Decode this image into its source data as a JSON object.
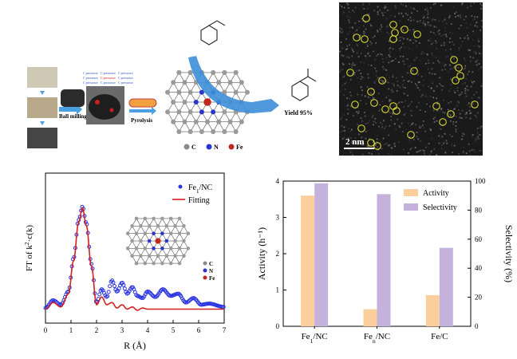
{
  "scheme": {
    "step_labels": [
      "Ball milling",
      "Pyrolysis"
    ],
    "precursor_word": "C precursor",
    "yield_label": "Yield 95%",
    "legend": [
      {
        "symbol": "C",
        "color": "#8a8a8a"
      },
      {
        "symbol": "N",
        "color": "#2a35c9"
      },
      {
        "symbol": "Fe",
        "color": "#c0281e"
      }
    ]
  },
  "micrograph": {
    "scale_label": "2 nm",
    "marker_color": "#e8e838"
  },
  "chart_data": [
    {
      "type": "line",
      "xlabel": "R (Å)",
      "ylabel": "FT of k²·c(k)",
      "xlim": [
        0,
        7
      ],
      "xticks": [
        0,
        1,
        2,
        3,
        4,
        5,
        6,
        7
      ],
      "series": [
        {
          "name": "Fe1/NC",
          "style": "scatter",
          "color": "#2a35e0",
          "x": [
            0.0,
            0.3,
            0.6,
            0.9,
            1.1,
            1.3,
            1.45,
            1.6,
            1.8,
            2.0,
            2.2,
            2.4,
            2.6,
            2.8,
            3.0,
            3.2,
            3.4,
            3.6,
            3.8,
            4.0,
            4.3,
            4.6,
            4.9,
            5.2,
            5.5,
            5.8,
            6.1,
            6.4,
            7.0
          ],
          "y": [
            0.05,
            0.12,
            0.08,
            0.2,
            0.5,
            0.85,
            0.97,
            0.82,
            0.45,
            0.1,
            0.22,
            0.15,
            0.3,
            0.2,
            0.28,
            0.18,
            0.24,
            0.16,
            0.14,
            0.2,
            0.15,
            0.22,
            0.16,
            0.18,
            0.1,
            0.14,
            0.08,
            0.09,
            0.06
          ]
        },
        {
          "name": "Fitting",
          "style": "line",
          "color": "#d42020",
          "x": [
            0.0,
            0.3,
            0.6,
            0.9,
            1.1,
            1.3,
            1.45,
            1.6,
            1.8,
            2.0,
            2.2,
            2.4,
            2.6,
            2.8,
            3.0,
            3.2,
            3.4,
            3.6,
            3.8,
            4.0,
            4.5,
            5.0,
            6.0,
            7.0
          ],
          "y": [
            0.04,
            0.1,
            0.06,
            0.18,
            0.48,
            0.83,
            0.96,
            0.8,
            0.43,
            0.08,
            0.15,
            0.08,
            0.1,
            0.05,
            0.08,
            0.04,
            0.06,
            0.03,
            0.05,
            0.04,
            0.04,
            0.04,
            0.04,
            0.04
          ]
        }
      ],
      "inset_legend": [
        {
          "symbol": "C",
          "color": "#8a8a8a"
        },
        {
          "symbol": "N",
          "color": "#2a35c9"
        },
        {
          "symbol": "Fe",
          "color": "#c0281e"
        }
      ]
    },
    {
      "type": "bar",
      "categories": [
        "Fe1/NC",
        "Fen/NC",
        "Fe/C"
      ],
      "series": [
        {
          "name": "Activity",
          "axis": "left",
          "color": "#fbcf9b",
          "values": [
            3.6,
            0.47,
            0.86
          ]
        },
        {
          "name": "Selectivity",
          "axis": "right",
          "color": "#c4b1dc",
          "values": [
            98.5,
            91,
            54
          ]
        }
      ],
      "ylabel_left": "Activity (h⁻¹)",
      "ylabel_right": "Selectivity (%)",
      "ylim_left": [
        0,
        4
      ],
      "ylim_right": [
        0,
        100
      ],
      "yticks_left": [
        0,
        1,
        2,
        3,
        4
      ],
      "yticks_right": [
        0,
        20,
        40,
        60,
        80,
        100
      ],
      "legend_position": "top-right"
    }
  ]
}
